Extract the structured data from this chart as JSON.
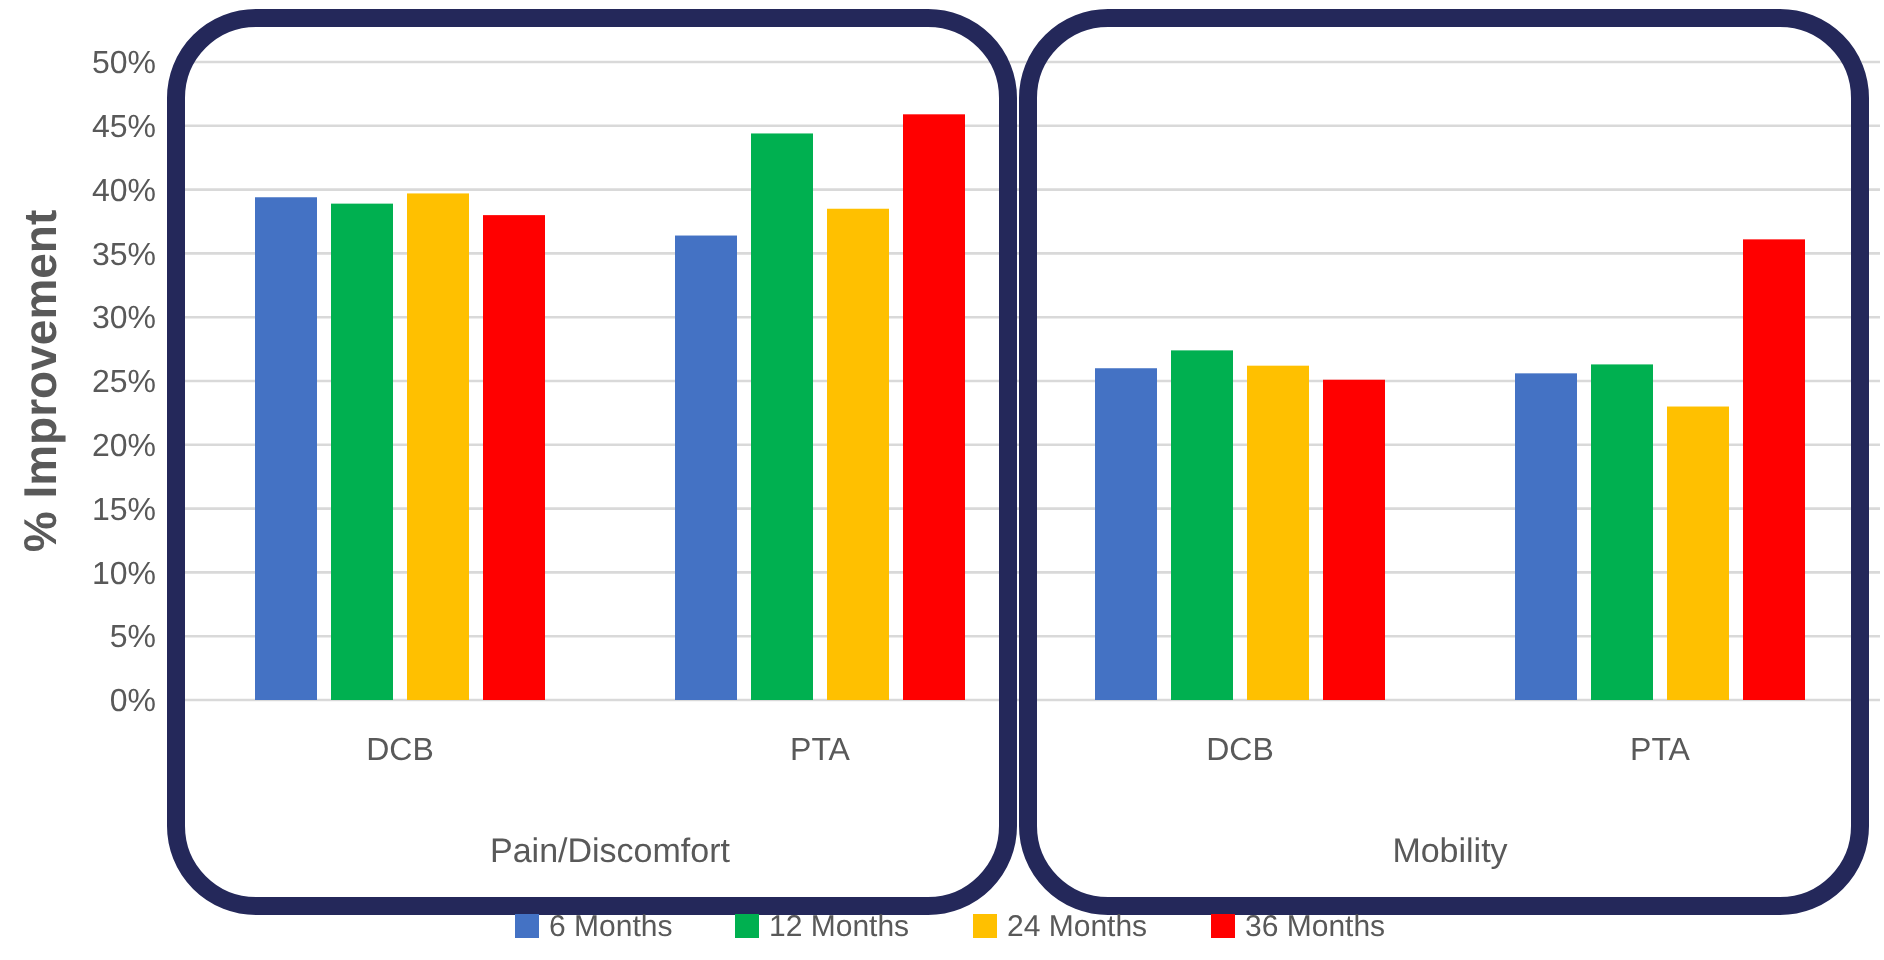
{
  "chart_data": {
    "type": "bar",
    "ylabel": "% Improvement",
    "categories": [
      "DCB",
      "PTA",
      "DCB",
      "PTA"
    ],
    "series": [
      {
        "name": "6 Months",
        "color": "#4472c4",
        "values": [
          39.4,
          36.4,
          26.0,
          25.6
        ]
      },
      {
        "name": "12 Months",
        "color": "#00b050",
        "values": [
          38.9,
          44.4,
          27.4,
          26.3
        ]
      },
      {
        "name": "24 Months",
        "color": "#ffc000",
        "values": [
          39.7,
          38.5,
          26.2,
          23.0
        ]
      },
      {
        "name": "36 Months",
        "color": "#ff0000",
        "values": [
          38.0,
          45.9,
          25.1,
          36.1
        ]
      }
    ],
    "ylim": [
      0,
      50
    ],
    "yticks": [
      {
        "value": 0,
        "label": "0%"
      },
      {
        "value": 5,
        "label": "5%"
      },
      {
        "value": 10,
        "label": "10%"
      },
      {
        "value": 15,
        "label": "15%"
      },
      {
        "value": 20,
        "label": "20%"
      },
      {
        "value": 25,
        "label": "25%"
      },
      {
        "value": 30,
        "label": "30%"
      },
      {
        "value": 35,
        "label": "35%"
      },
      {
        "value": 40,
        "label": "40%"
      },
      {
        "value": 45,
        "label": "45%"
      },
      {
        "value": 50,
        "label": "50%"
      }
    ],
    "annotations": [
      "Pain/Discomfort",
      "Mobility"
    ],
    "grid": "y",
    "legend": "bottom"
  }
}
